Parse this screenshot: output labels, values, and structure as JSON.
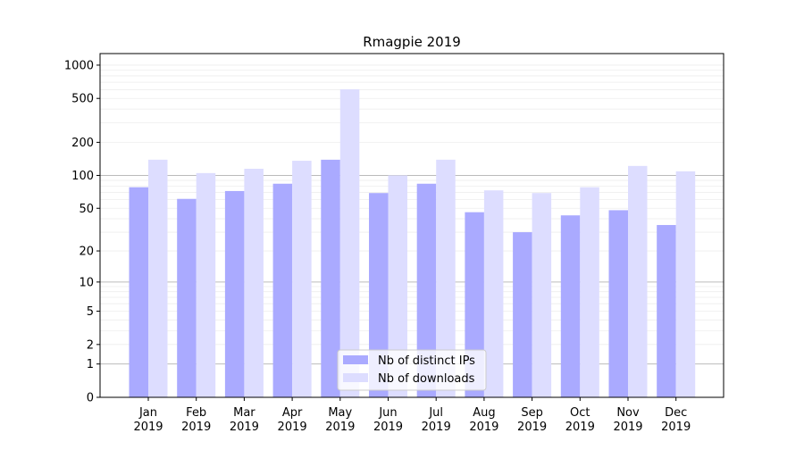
{
  "chart_data": {
    "type": "bar",
    "title": "Rmagpie 2019",
    "xlabel": "",
    "ylabel": "",
    "yscale": "symlog (log10(1+y))",
    "ylim": [
      0,
      1300
    ],
    "yticks": [
      0,
      1,
      2,
      5,
      10,
      20,
      50,
      100,
      200,
      500,
      1000
    ],
    "ytick_labels": [
      "0",
      "1",
      "2",
      "5",
      "10",
      "20",
      "50",
      "100",
      "200",
      "500",
      "1000"
    ],
    "grid": true,
    "legend_position": "bottom-center",
    "categories": [
      "Jan\n2019",
      "Feb\n2019",
      "Mar\n2019",
      "Apr\n2019",
      "May\n2019",
      "Jun\n2019",
      "Jul\n2019",
      "Aug\n2019",
      "Sep\n2019",
      "Oct\n2019",
      "Nov\n2019",
      "Dec\n2019"
    ],
    "series": [
      {
        "name": "Nb of distinct IPs",
        "color": "#aaaaff",
        "values": [
          78,
          61,
          72,
          84,
          139,
          69,
          84,
          46,
          30,
          43,
          48,
          35
        ]
      },
      {
        "name": "Nb of downloads",
        "color": "#ddddff",
        "values": [
          139,
          105,
          115,
          136,
          604,
          100,
          139,
          73,
          69,
          78,
          122,
          109
        ]
      }
    ]
  }
}
